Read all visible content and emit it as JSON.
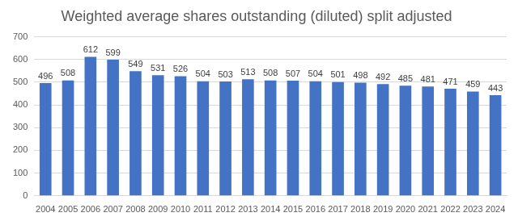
{
  "chart_data": {
    "type": "bar",
    "title": "Weighted average shares outstanding (diluted) split adjusted",
    "categories": [
      "2004",
      "2005",
      "2006",
      "2007",
      "2008",
      "2009",
      "2010",
      "2011",
      "2012",
      "2013",
      "2014",
      "2015",
      "2016",
      "2017",
      "2018",
      "2019",
      "2020",
      "2021",
      "2022",
      "2023",
      "2024"
    ],
    "values": [
      496,
      508,
      612,
      599,
      549,
      531,
      526,
      504,
      503,
      513,
      508,
      507,
      504,
      501,
      498,
      492,
      485,
      481,
      471,
      459,
      443
    ],
    "color": "#4472c4",
    "ylim": [
      0,
      700
    ],
    "yticks": [
      0,
      100,
      200,
      300,
      400,
      500,
      600,
      700
    ],
    "grid": true,
    "data_labels": true
  }
}
